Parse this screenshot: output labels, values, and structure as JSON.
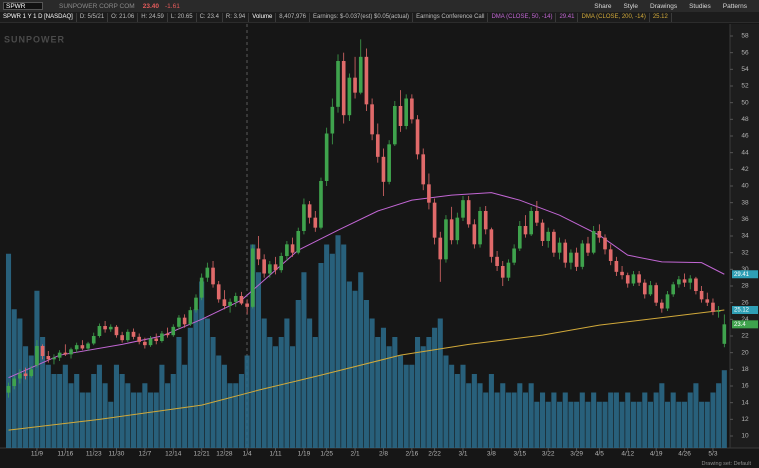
{
  "toolbar": {
    "symbol": "SPWR",
    "company": "SUNPOWER CORP COM",
    "last": "23.40",
    "change": "-1.61",
    "buttons": [
      "Share",
      "Style",
      "Drawings",
      "Studies",
      "Patterns"
    ]
  },
  "status": [
    {
      "text": "SPWR 1 Y 1 D [NASDAQ]",
      "color": "#ffffff"
    },
    {
      "text": "D: 5/5/21",
      "color": "#bdbdbd"
    },
    {
      "text": "O: 21.06",
      "color": "#bdbdbd"
    },
    {
      "text": "H: 24.59",
      "color": "#bdbdbd"
    },
    {
      "text": "L: 20.65",
      "color": "#bdbdbd"
    },
    {
      "text": "C: 23.4",
      "color": "#bdbdbd"
    },
    {
      "text": "R: 3.94",
      "color": "#bdbdbd"
    },
    {
      "text": "Volume",
      "color": "#ffffff"
    },
    {
      "text": "8,407,976",
      "color": "#bdbdbd"
    },
    {
      "text": "Earnings: $-0.037(est) $0.05(actual)",
      "color": "#bdbdbd"
    },
    {
      "text": "Earnings Conference Call",
      "color": "#bdbdbd"
    },
    {
      "text": "DMA (CLOSE, 50, -14)",
      "color": "#c266d4"
    },
    {
      "text": "29.41",
      "color": "#c266d4"
    },
    {
      "text": "DMA (CLOSE, 200, -14)",
      "color": "#d1a93a"
    },
    {
      "text": "25.12",
      "color": "#d1a93a"
    }
  ],
  "footer": "Drawing set: Default",
  "chart_data": {
    "type": "candlestick",
    "watermark": "SUNPOWER",
    "xlim": [
      -1.5,
      127
    ],
    "xticks": [
      {
        "value": 5,
        "label": "11/9"
      },
      {
        "value": 10,
        "label": "11/16"
      },
      {
        "value": 15,
        "label": "11/23"
      },
      {
        "value": 19,
        "label": "11/30"
      },
      {
        "value": 24,
        "label": "12/7"
      },
      {
        "value": 29,
        "label": "12/14"
      },
      {
        "value": 34,
        "label": "12/21"
      },
      {
        "value": 38,
        "label": "12/28"
      },
      {
        "value": 42,
        "label": "1/4"
      },
      {
        "value": 47,
        "label": "1/11"
      },
      {
        "value": 52,
        "label": "1/19"
      },
      {
        "value": 56,
        "label": "1/25"
      },
      {
        "value": 61,
        "label": "2/1"
      },
      {
        "value": 66,
        "label": "2/8"
      },
      {
        "value": 71,
        "label": "2/16"
      },
      {
        "value": 75,
        "label": "2/22"
      },
      {
        "value": 80,
        "label": "3/1"
      },
      {
        "value": 85,
        "label": "3/8"
      },
      {
        "value": 90,
        "label": "3/15"
      },
      {
        "value": 95,
        "label": "3/22"
      },
      {
        "value": 100,
        "label": "3/29"
      },
      {
        "value": 104,
        "label": "4/5"
      },
      {
        "value": 109,
        "label": "4/12"
      },
      {
        "value": 114,
        "label": "4/19"
      },
      {
        "value": 119,
        "label": "4/26"
      },
      {
        "value": 124,
        "label": "5/3"
      }
    ],
    "ylim": [
      8.56,
      59.44
    ],
    "yticks": [
      10,
      12,
      14,
      16,
      18,
      20,
      22,
      24,
      26,
      28,
      30,
      32,
      34,
      36,
      38,
      40,
      42,
      44,
      46,
      48,
      50,
      52,
      54,
      56,
      58
    ],
    "up_color": "#3fa34d",
    "down_color": "#e06a6a",
    "open": [
      15.2,
      16.0,
      16.9,
      17.5,
      17.2,
      18.5,
      20.8,
      19.6,
      19.2,
      19.4,
      20.0,
      19.8,
      20.4,
      20.9,
      20.5,
      21.1,
      22.0,
      23.2,
      22.8,
      23.1,
      22.1,
      21.5,
      22.5,
      21.9,
      21.3,
      20.9,
      21.7,
      21.4,
      22.3,
      22.1,
      23.1,
      24.2,
      23.4,
      25.1,
      26.6,
      29.0,
      30.2,
      28.2,
      26.4,
      25.6,
      26.1,
      26.8,
      25.9,
      25.5,
      32.5,
      31.2,
      29.5,
      30.6,
      29.9,
      31.6,
      33.0,
      32.0,
      34.6,
      37.8,
      36.2,
      35.0,
      40.6,
      46.3,
      49.5,
      55.0,
      48.5,
      53.0,
      51.2,
      55.5,
      49.8,
      46.2,
      43.5,
      40.5,
      45.0,
      49.6,
      47.2,
      50.5,
      48.0,
      43.8,
      40.2,
      38.0,
      33.8,
      31.2,
      36.0,
      33.5,
      36.2,
      38.3,
      35.4,
      33.0,
      37.0,
      34.8,
      31.5,
      30.4,
      29.0,
      30.8,
      32.5,
      35.2,
      34.2,
      37.0,
      35.6,
      33.4,
      34.5,
      32.0,
      33.2,
      30.8,
      32.0,
      30.3,
      33.1,
      32.0,
      34.6,
      33.8,
      32.4,
      31.0,
      29.7,
      29.3,
      28.3,
      29.4,
      28.4,
      27.0,
      28.1,
      26.0,
      25.3,
      27.0,
      28.2,
      28.8,
      28.4,
      28.9,
      27.4,
      26.4,
      26.0,
      24.9,
      21.06
    ],
    "high": [
      16.4,
      17.2,
      18.0,
      18.2,
      18.4,
      21.5,
      21.0,
      20.2,
      19.8,
      20.3,
      21.0,
      20.6,
      21.2,
      21.5,
      21.3,
      22.4,
      23.5,
      23.8,
      23.4,
      23.3,
      22.5,
      22.8,
      22.9,
      22.3,
      21.8,
      22.0,
      22.3,
      22.6,
      23.0,
      23.4,
      24.5,
      24.6,
      25.5,
      27.0,
      29.5,
      30.8,
      31.0,
      28.6,
      27.5,
      26.5,
      27.2,
      27.3,
      26.4,
      33.0,
      34.0,
      31.8,
      31.0,
      31.5,
      32.0,
      33.4,
      33.8,
      35.0,
      38.5,
      38.2,
      37.0,
      41.0,
      47.0,
      50.5,
      55.8,
      56.0,
      53.5,
      55.5,
      57.6,
      56.5,
      50.5,
      47.5,
      44.5,
      45.5,
      50.2,
      51.5,
      51.0,
      51.0,
      48.5,
      44.5,
      41.5,
      38.5,
      34.5,
      36.5,
      37.5,
      36.8,
      38.8,
      38.8,
      36.0,
      37.5,
      37.6,
      35.0,
      32.2,
      31.0,
      31.2,
      33.0,
      35.8,
      36.5,
      37.5,
      38.2,
      36.0,
      35.0,
      34.8,
      33.8,
      33.6,
      32.4,
      32.6,
      33.5,
      33.9,
      35.2,
      35.4,
      34.2,
      33.0,
      31.5,
      30.4,
      29.6,
      29.8,
      29.8,
      28.8,
      28.6,
      28.4,
      26.4,
      27.4,
      28.5,
      29.2,
      29.5,
      29.3,
      29.1,
      28.0,
      27.2,
      26.5,
      25.6,
      24.59
    ],
    "low": [
      14.6,
      15.6,
      16.3,
      16.8,
      17.0,
      18.2,
      19.2,
      18.8,
      18.6,
      19.0,
      19.6,
      19.3,
      20.0,
      20.3,
      20.2,
      20.9,
      21.8,
      22.4,
      22.5,
      21.8,
      21.2,
      21.3,
      21.6,
      21.0,
      20.5,
      20.7,
      21.0,
      21.2,
      21.8,
      21.9,
      22.8,
      23.0,
      23.2,
      24.8,
      26.3,
      28.5,
      27.8,
      26.0,
      25.2,
      24.8,
      25.5,
      25.7,
      24.6,
      25.3,
      30.5,
      29.0,
      29.0,
      29.4,
      29.6,
      31.0,
      31.5,
      31.8,
      34.2,
      35.5,
      34.5,
      34.8,
      40.0,
      45.0,
      48.8,
      47.5,
      47.8,
      50.5,
      51.0,
      49.0,
      45.5,
      42.8,
      38.8,
      40.2,
      44.8,
      46.5,
      46.8,
      47.5,
      43.2,
      39.5,
      37.2,
      33.0,
      28.5,
      30.8,
      33.0,
      33.0,
      35.8,
      35.0,
      32.5,
      32.6,
      34.2,
      30.8,
      29.8,
      28.0,
      28.6,
      30.5,
      32.2,
      33.8,
      34.0,
      35.2,
      32.8,
      32.6,
      31.5,
      31.2,
      30.2,
      30.0,
      29.8,
      30.0,
      31.6,
      31.8,
      33.2,
      31.8,
      30.5,
      29.2,
      28.8,
      27.8,
      28.0,
      28.0,
      26.5,
      26.8,
      25.6,
      24.8,
      25.0,
      26.7,
      27.8,
      27.9,
      27.6,
      27.0,
      26.0,
      25.6,
      24.5,
      24.2,
      20.65
    ],
    "close": [
      16.0,
      16.9,
      17.5,
      17.2,
      18.0,
      20.8,
      19.6,
      19.2,
      19.4,
      20.0,
      19.8,
      20.4,
      20.9,
      20.5,
      21.1,
      22.0,
      23.2,
      22.8,
      23.1,
      22.1,
      21.5,
      22.5,
      21.9,
      21.3,
      20.9,
      21.7,
      21.4,
      22.3,
      22.1,
      23.1,
      24.2,
      23.4,
      25.1,
      26.6,
      29.0,
      30.2,
      28.2,
      26.4,
      25.6,
      26.1,
      26.8,
      25.9,
      25.5,
      32.5,
      31.2,
      29.5,
      30.6,
      29.9,
      31.6,
      33.0,
      32.0,
      34.6,
      37.8,
      36.2,
      35.0,
      40.6,
      46.3,
      49.5,
      55.0,
      48.5,
      53.0,
      51.2,
      55.5,
      49.8,
      46.2,
      43.5,
      40.5,
      45.0,
      49.6,
      47.2,
      50.5,
      48.0,
      43.8,
      40.2,
      38.0,
      33.8,
      31.2,
      36.0,
      33.5,
      36.2,
      38.3,
      35.4,
      33.0,
      37.0,
      34.8,
      31.5,
      30.4,
      29.0,
      30.8,
      32.5,
      35.2,
      34.2,
      37.0,
      35.6,
      33.4,
      34.5,
      32.0,
      33.2,
      30.8,
      32.0,
      30.3,
      33.1,
      32.0,
      34.6,
      33.8,
      32.4,
      31.0,
      29.7,
      29.3,
      28.3,
      29.4,
      28.4,
      27.0,
      28.1,
      26.0,
      25.3,
      27.0,
      28.2,
      28.8,
      28.4,
      28.9,
      27.4,
      26.4,
      26.0,
      24.9,
      25.01,
      23.4
    ],
    "volume": {
      "color": "#2b6d8d",
      "ylim": [
        0,
        24
      ],
      "values": [
        21,
        15,
        14,
        11,
        10,
        17,
        12,
        9,
        8,
        8,
        9,
        7,
        8,
        6,
        6,
        8,
        9,
        7,
        5,
        9,
        8,
        7,
        6,
        6,
        7,
        6,
        6,
        9,
        7,
        8,
        12,
        9,
        13,
        15,
        18,
        14,
        12,
        10,
        9,
        7,
        7,
        8,
        10,
        22,
        19,
        14,
        12,
        11,
        12,
        14,
        11,
        16,
        19,
        14,
        12,
        20,
        22,
        21,
        23,
        22,
        18,
        17,
        19,
        16,
        14,
        12,
        13,
        11,
        12,
        10,
        9,
        9,
        12,
        11,
        12,
        13,
        14,
        10,
        9,
        8,
        9,
        7,
        8,
        7,
        6,
        8,
        6,
        7,
        6,
        6,
        7,
        6,
        7,
        5,
        6,
        5,
        6,
        5,
        6,
        5,
        5,
        6,
        5,
        6,
        5,
        5,
        6,
        6,
        5,
        6,
        5,
        5,
        6,
        5,
        6,
        7,
        5,
        6,
        5,
        5,
        6,
        7,
        5,
        5,
        6,
        7,
        8.41
      ]
    },
    "dma": [
      {
        "color": "#c266d4",
        "tag_color": "#2f9fb5",
        "x": [
          0,
          9,
          20,
          27,
          34,
          41,
          46,
          51,
          58,
          65,
          71,
          78,
          85,
          90,
          97,
          104,
          109,
          115,
          122,
          126
        ],
        "values": [
          17.0,
          19.7,
          21.0,
          22.0,
          24.0,
          26.3,
          29.3,
          32.3,
          34.7,
          37.0,
          38.3,
          38.9,
          39.2,
          38.3,
          36.5,
          34.1,
          31.7,
          30.9,
          30.8,
          29.41
        ]
      },
      {
        "color": "#d1a93a",
        "tag_color": "#2f9fb5",
        "x": [
          0,
          16,
          34,
          44,
          55,
          69,
          81,
          94,
          104,
          115,
          126
        ],
        "values": [
          10.7,
          12.0,
          13.7,
          15.5,
          17.3,
          19.7,
          21.0,
          22.1,
          23.3,
          24.2,
          25.12
        ]
      }
    ]
  }
}
